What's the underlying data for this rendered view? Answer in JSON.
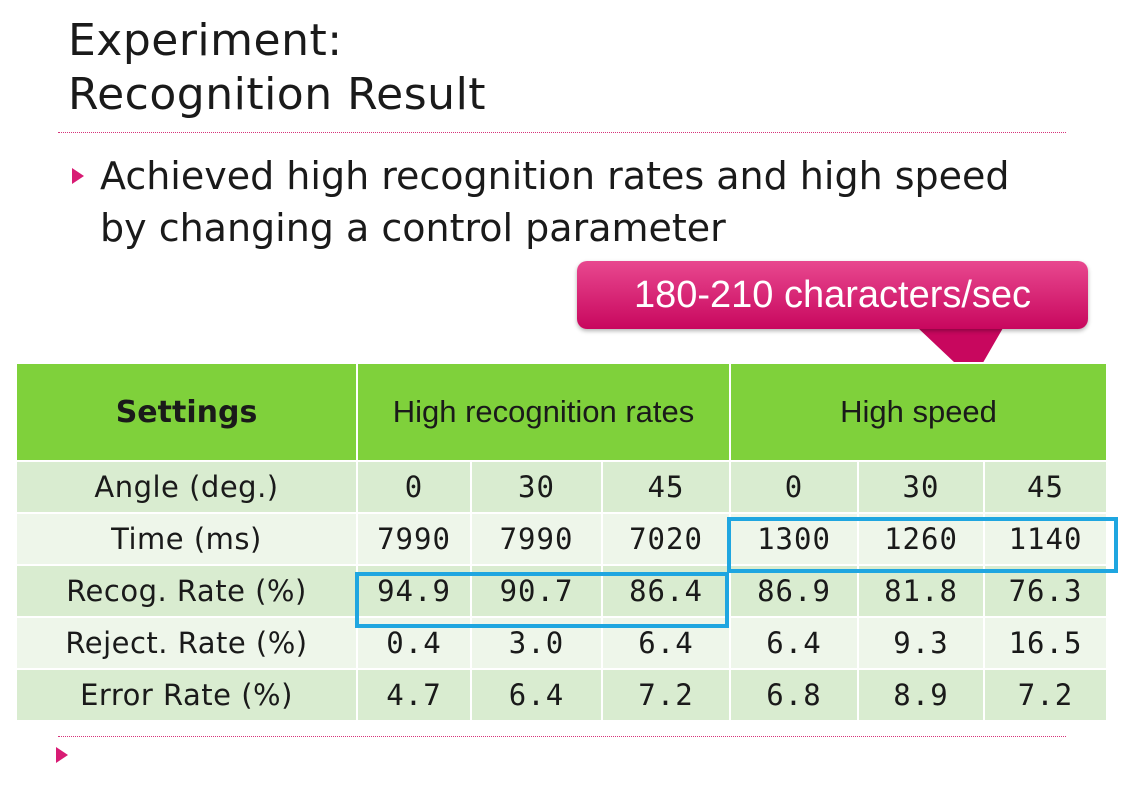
{
  "slide": {
    "title_line1": "Experiment:",
    "title_line2": "Recognition Result",
    "bullet": "Achieved high recognition rates and high speed by changing a control parameter",
    "callout": "180-210 characters/sec"
  },
  "table": {
    "header": {
      "settings": "Settings",
      "group1": "High recognition rates",
      "group2": "High speed"
    },
    "rows": [
      {
        "label": "Angle (deg.)",
        "values": [
          "0",
          "30",
          "45",
          "0",
          "30",
          "45"
        ]
      },
      {
        "label": "Time (ms)",
        "values": [
          "7990",
          "7990",
          "7020",
          "1300",
          "1260",
          "1140"
        ]
      },
      {
        "label": "Recog. Rate (%)",
        "values": [
          "94.9",
          "90.7",
          "86.4",
          "86.9",
          "81.8",
          "76.3"
        ]
      },
      {
        "label": "Reject. Rate (%)",
        "values": [
          "0.4",
          "3.0",
          "6.4",
          "6.4",
          "9.3",
          "16.5"
        ]
      },
      {
        "label": "Error Rate (%)",
        "values": [
          "4.7",
          "6.4",
          "7.2",
          "6.8",
          "8.9",
          "7.2"
        ]
      }
    ]
  },
  "colors": {
    "accent": "#d81b74",
    "header_green": "#7fd13b",
    "highlight_blue": "#1fa6e0"
  }
}
